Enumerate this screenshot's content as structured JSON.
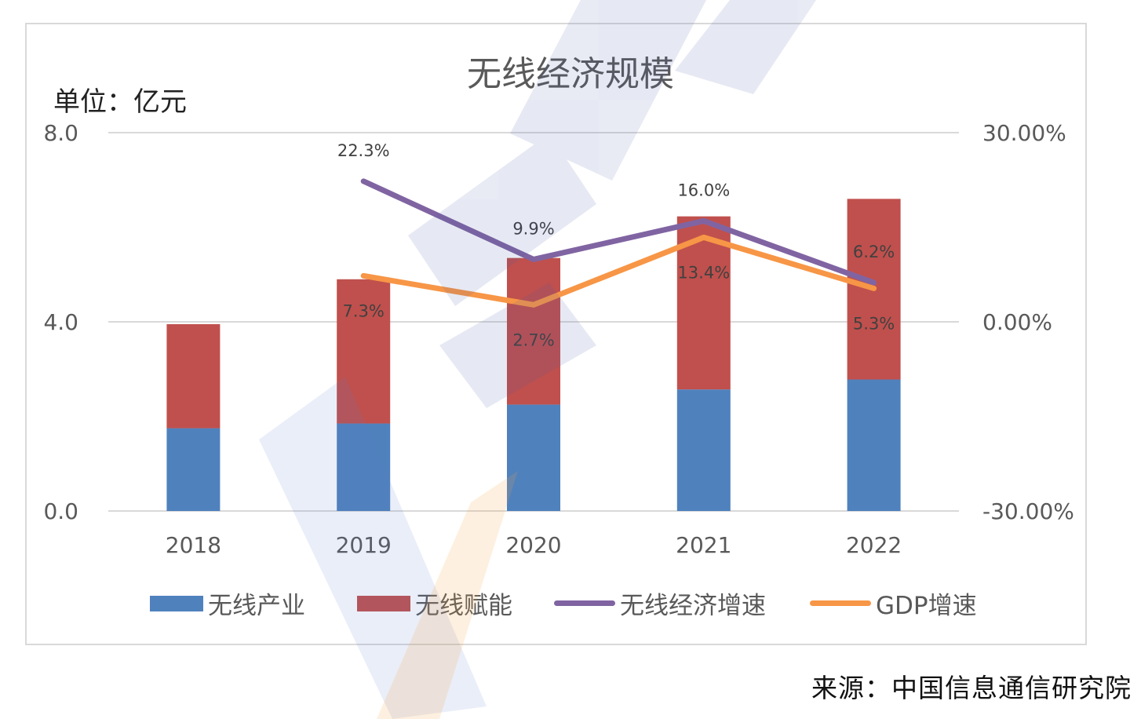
{
  "chart_data": {
    "type": "bar",
    "title": "无线经济规模",
    "unit_label": "单位：亿元",
    "source": "来源：中国信息通信研究院",
    "categories": [
      "2018",
      "2019",
      "2020",
      "2021",
      "2022"
    ],
    "y_left": {
      "ylim": [
        0,
        8
      ],
      "ticks": [
        "0.0",
        "4.0",
        "8.0"
      ]
    },
    "y_right": {
      "ylim": [
        -30,
        30
      ],
      "ticks": [
        "-30.00%",
        "0.00%",
        "30.00%"
      ]
    },
    "grid": true,
    "legend_position": "bottom",
    "series": [
      {
        "name": "无线产业",
        "type": "bar",
        "stack": true,
        "axis": "left",
        "color": "#4f81bd",
        "values": [
          1.75,
          1.85,
          2.25,
          2.57,
          2.78
        ]
      },
      {
        "name": "无线赋能",
        "type": "bar",
        "stack": true,
        "axis": "left",
        "color": "#c0504d",
        "values": [
          2.2,
          3.05,
          3.1,
          3.66,
          3.82
        ]
      },
      {
        "name": "无线经济增速",
        "type": "line",
        "axis": "right",
        "color": "#8064a2",
        "values": [
          null,
          22.3,
          9.9,
          16.0,
          6.2
        ],
        "labels": [
          "",
          "22.3%",
          "9.9%",
          "16.0%",
          "6.2%"
        ]
      },
      {
        "name": "GDP增速",
        "type": "line",
        "axis": "right",
        "color": "#f79646",
        "values": [
          null,
          7.3,
          2.7,
          13.4,
          5.3
        ],
        "labels": [
          "",
          "7.3%",
          "2.7%",
          "13.4%",
          "5.3%"
        ]
      }
    ]
  }
}
